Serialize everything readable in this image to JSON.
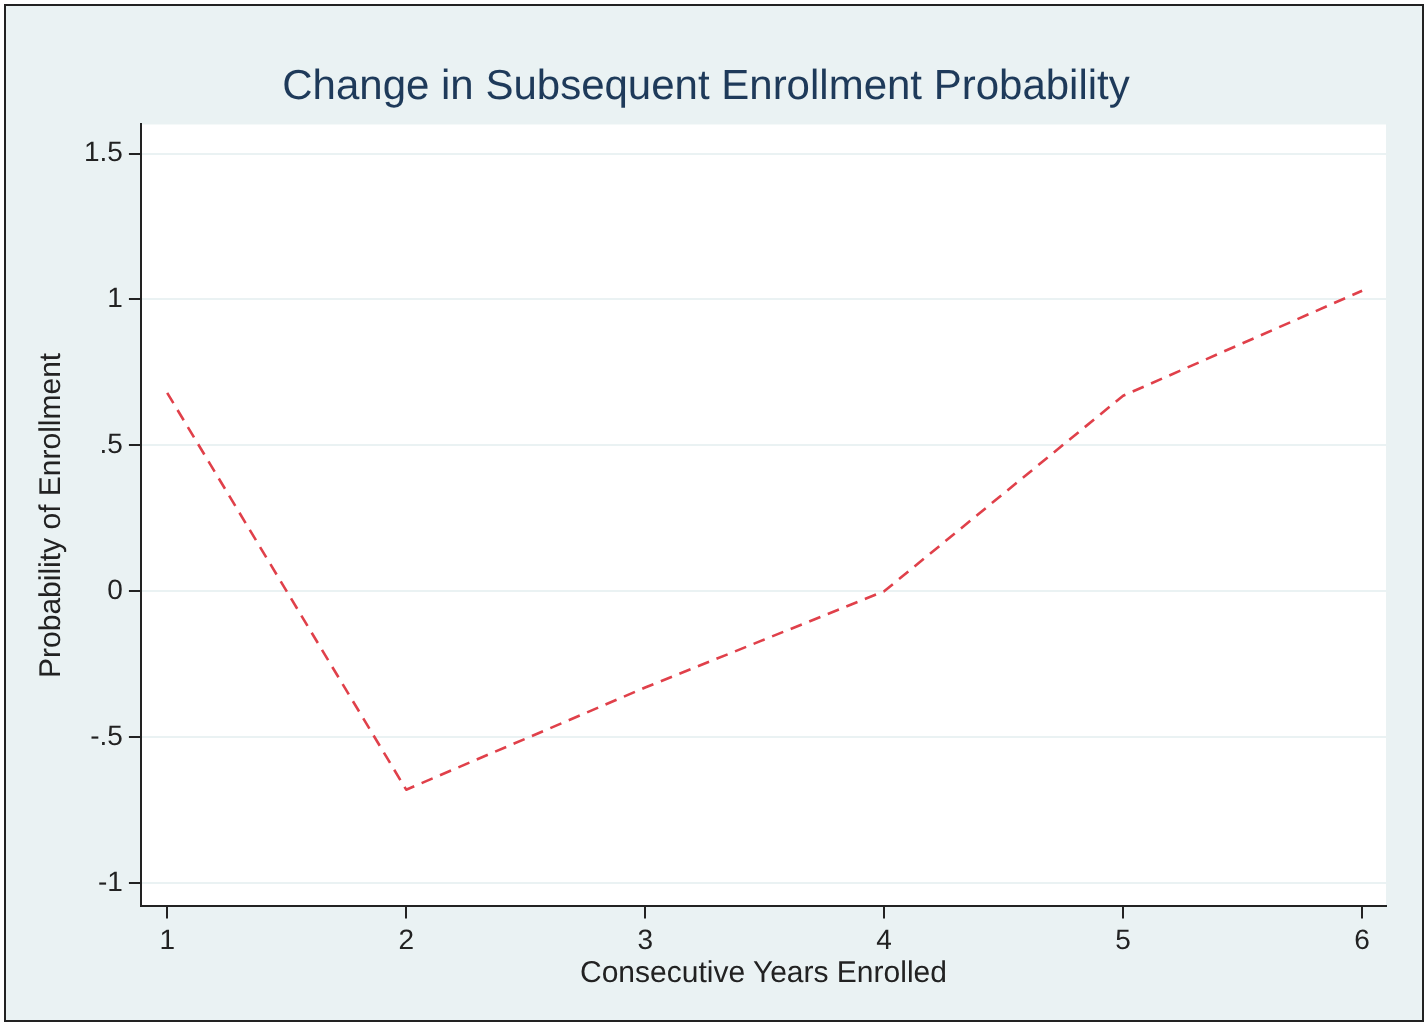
{
  "chart_data": {
    "type": "line",
    "title": "Change in Subsequent Enrollment Probability",
    "xlabel": "Consecutive Years Enrolled",
    "ylabel": "Probability of Enrollment",
    "x": [
      1,
      2,
      3,
      4,
      5,
      6
    ],
    "series": [
      {
        "color": "#e0404a",
        "values": [
          0.68,
          -0.68,
          -0.33,
          0.0,
          0.67,
          1.03
        ]
      }
    ],
    "xlim": [
      0.89,
      6.1
    ],
    "xticks": [
      1,
      2,
      3,
      4,
      5,
      6
    ],
    "ylim": [
      -1.08,
      1.6
    ],
    "yticks": [
      -1,
      {
        "value": -0.5,
        "label": "-.5"
      },
      0,
      {
        "value": 0.5,
        "label": ".5"
      },
      1,
      1.5
    ],
    "grid": "y",
    "legend": false,
    "marker": "none",
    "line_style": "dashed"
  }
}
